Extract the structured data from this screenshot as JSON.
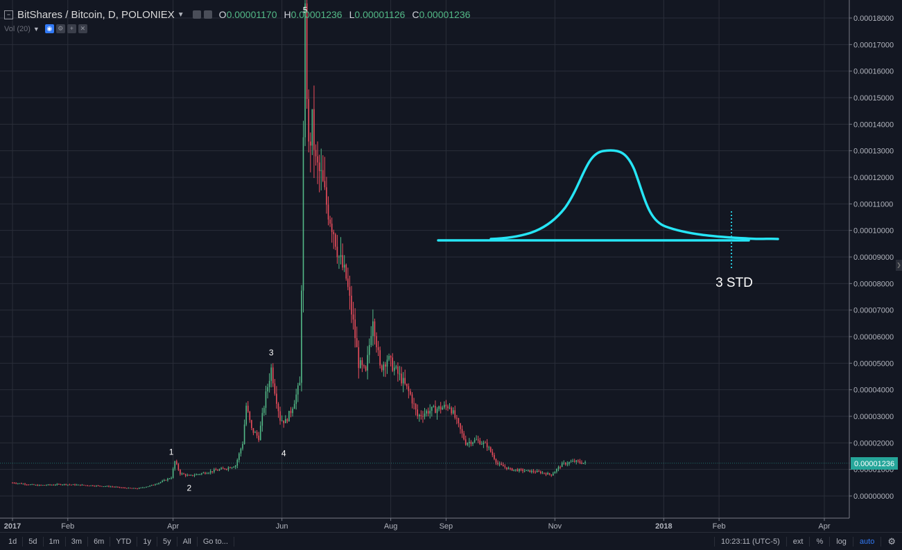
{
  "header": {
    "symbol": "BitShares / Bitcoin, D, POLONIEX",
    "o_label": "O",
    "o_value": "0.00001170",
    "h_label": "H",
    "h_value": "0.00001236",
    "l_label": "L",
    "l_value": "0.00001126",
    "c_label": "C",
    "c_value": "0.00001236",
    "volume_label": "Vol (20)"
  },
  "chart_data": {
    "type": "candlestick",
    "title": "",
    "ylim": [
      0.0,
      0.00018
    ],
    "y_ticks": [
      "0.00018000",
      "0.00017000",
      "0.00016000",
      "0.00015000",
      "0.00014000",
      "0.00013000",
      "0.00012000",
      "0.00011000",
      "0.00010000",
      "0.00009000",
      "0.00008000",
      "0.00007000",
      "0.00006000",
      "0.00005000",
      "0.00004000",
      "0.00003000",
      "0.00002000",
      "0.00001000",
      "0.00000000"
    ],
    "x_ticks": [
      "2017",
      "Feb",
      "Apr",
      "Jun",
      "Aug",
      "Sep",
      "Nov",
      "2018",
      "Feb",
      "Apr"
    ],
    "last_price": "0.00001236",
    "series_close": [
      [
        "2017-01-01",
        5e-06
      ],
      [
        "2017-01-08",
        4.5e-06
      ],
      [
        "2017-01-15",
        4e-06
      ],
      [
        "2017-01-22",
        4.2e-06
      ],
      [
        "2017-01-29",
        4.4e-06
      ],
      [
        "2017-02-05",
        4.2e-06
      ],
      [
        "2017-02-12",
        4e-06
      ],
      [
        "2017-02-19",
        3.8e-06
      ],
      [
        "2017-02-26",
        3.5e-06
      ],
      [
        "2017-03-05",
        3e-06
      ],
      [
        "2017-03-12",
        2.8e-06
      ],
      [
        "2017-03-19",
        3.8e-06
      ],
      [
        "2017-03-26",
        5.5e-06
      ],
      [
        "2017-03-31",
        7e-06
      ],
      [
        "2017-04-02",
        1.3e-05
      ],
      [
        "2017-04-05",
        8.5e-06
      ],
      [
        "2017-04-10",
        7.5e-06
      ],
      [
        "2017-04-17",
        8.5e-06
      ],
      [
        "2017-04-24",
        9.5e-06
      ],
      [
        "2017-05-01",
        1.05e-05
      ],
      [
        "2017-05-06",
        1.15e-05
      ],
      [
        "2017-05-10",
        2e-05
      ],
      [
        "2017-05-12",
        3.4e-05
      ],
      [
        "2017-05-15",
        2.5e-05
      ],
      [
        "2017-05-19",
        2.2e-05
      ],
      [
        "2017-05-23",
        3.8e-05
      ],
      [
        "2017-05-26",
        4.8e-05
      ],
      [
        "2017-05-28",
        4e-05
      ],
      [
        "2017-05-31",
        2.9e-05
      ],
      [
        "2017-06-03",
        2.8e-05
      ],
      [
        "2017-06-06",
        3.2e-05
      ],
      [
        "2017-06-09",
        3.8e-05
      ],
      [
        "2017-06-11",
        4.2e-05
      ],
      [
        "2017-06-12",
        8e-05
      ],
      [
        "2017-06-13",
        0.000132
      ],
      [
        "2017-06-14",
        0.000178
      ],
      [
        "2017-06-16",
        0.00013
      ],
      [
        "2017-06-18",
        0.00014
      ],
      [
        "2017-06-20",
        0.000125
      ],
      [
        "2017-06-23",
        0.00012
      ],
      [
        "2017-06-26",
        0.00011
      ],
      [
        "2017-06-30",
        0.0001
      ],
      [
        "2017-07-03",
        9e-05
      ],
      [
        "2017-07-07",
        8.2e-05
      ],
      [
        "2017-07-11",
        6.5e-05
      ],
      [
        "2017-07-14",
        5e-05
      ],
      [
        "2017-07-18",
        4.6e-05
      ],
      [
        "2017-07-22",
        6.8e-05
      ],
      [
        "2017-07-26",
        4.8e-05
      ],
      [
        "2017-07-30",
        5.2e-05
      ],
      [
        "2017-08-03",
        4.8e-05
      ],
      [
        "2017-08-07",
        4.4e-05
      ],
      [
        "2017-08-12",
        3.8e-05
      ],
      [
        "2017-08-16",
        3e-05
      ],
      [
        "2017-08-22",
        3.2e-05
      ],
      [
        "2017-08-28",
        3.3e-05
      ],
      [
        "2017-09-03",
        3.4e-05
      ],
      [
        "2017-09-07",
        2.8e-05
      ],
      [
        "2017-09-12",
        2e-05
      ],
      [
        "2017-09-18",
        2.1e-05
      ],
      [
        "2017-09-24",
        1.9e-05
      ],
      [
        "2017-09-30",
        1.2e-05
      ],
      [
        "2017-10-07",
        1e-05
      ],
      [
        "2017-10-15",
        9.5e-06
      ],
      [
        "2017-10-23",
        9e-06
      ],
      [
        "2017-10-30",
        8e-06
      ],
      [
        "2017-11-05",
        1.2e-05
      ],
      [
        "2017-11-12",
        1.3e-05
      ],
      [
        "2017-11-18",
        1.24e-05
      ]
    ],
    "wave_labels": [
      {
        "text": "1",
        "date": "2017-03-31",
        "price": 1.55e-05
      },
      {
        "text": "2",
        "date": "2017-04-10",
        "price": 2e-06
      },
      {
        "text": "3",
        "date": "2017-05-26",
        "price": 5.3e-05
      },
      {
        "text": "4",
        "date": "2017-06-02",
        "price": 1.5e-05
      },
      {
        "text": "5",
        "date": "2017-06-14",
        "price": 0.000182
      }
    ],
    "annotation": "3 STD"
  },
  "bottom": {
    "timeframes": [
      "1d",
      "5d",
      "1m",
      "3m",
      "6m",
      "YTD",
      "1y",
      "5y",
      "All",
      "Go to..."
    ],
    "clock": "10:23:11 (UTC-5)",
    "ext": "ext",
    "percent": "%",
    "log": "log",
    "auto": "auto"
  },
  "colors": {
    "up": "#53b987",
    "down": "#eb4d5c",
    "bg": "#131722",
    "grid": "#2a2e39",
    "annotation": "#26e5f5",
    "price_tag": "#26a69a"
  }
}
